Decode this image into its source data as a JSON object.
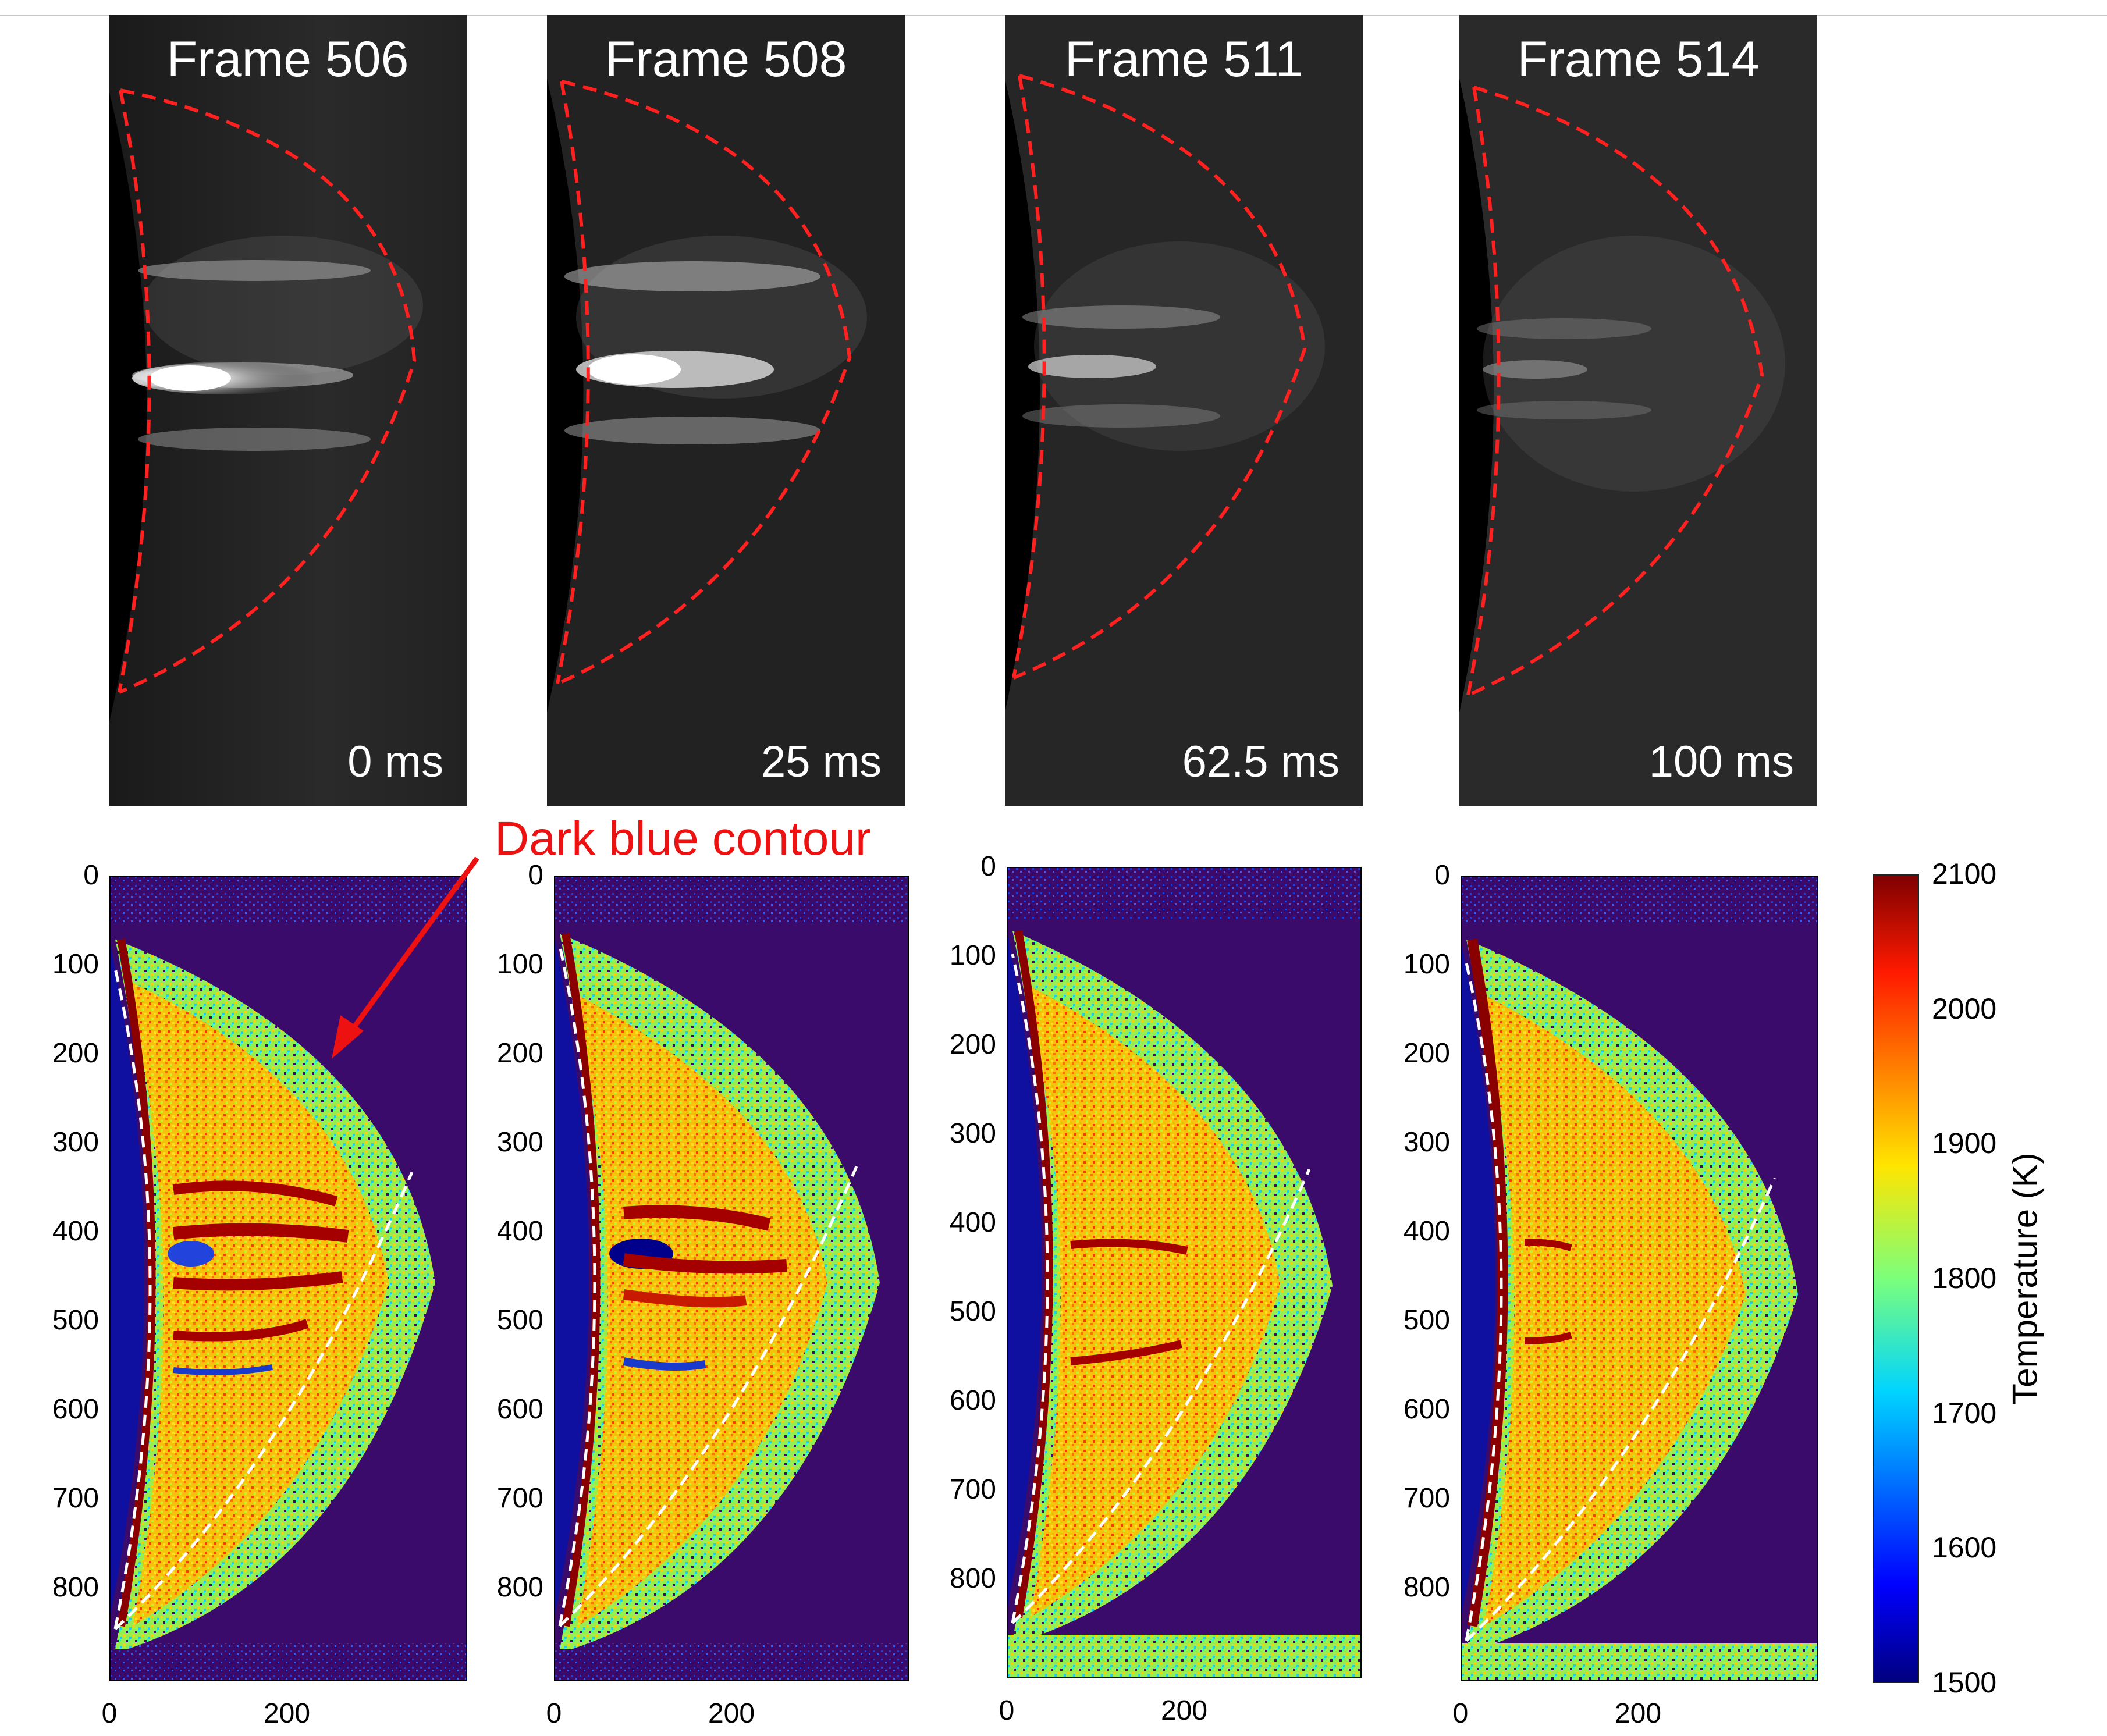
{
  "frames": [
    {
      "title": "Frame 506",
      "time": "0 ms"
    },
    {
      "title": "Frame 508",
      "time": "25 ms"
    },
    {
      "title": "Frame 511",
      "time": "62.5 ms"
    },
    {
      "title": "Frame 514",
      "time": "100 ms"
    }
  ],
  "annotation": "Dark blue contour",
  "axes": {
    "y_ticks": [
      "0",
      "100",
      "200",
      "300",
      "400",
      "500",
      "600",
      "700",
      "800"
    ],
    "x_ticks": [
      "0",
      "200"
    ]
  },
  "colorbar": {
    "label": "Temperature (K)",
    "ticks": [
      "2100",
      "2000",
      "1900",
      "1800",
      "1700",
      "1600",
      "1500"
    ],
    "min": 1500,
    "max": 2100
  },
  "colors": {
    "contour_red": "#ff2020",
    "contour_white": "#ffffff",
    "annotation": "#ee1111"
  }
}
